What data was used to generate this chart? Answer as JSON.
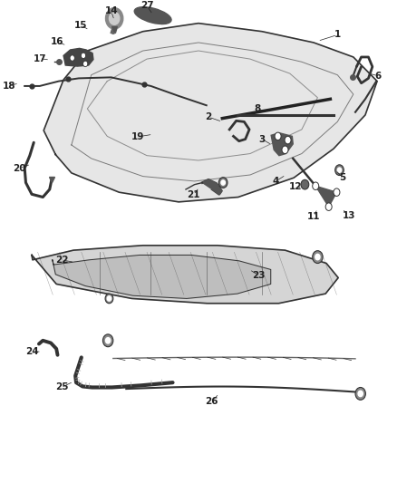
{
  "background": "#ffffff",
  "line_color": "#333333",
  "label_color": "#222222",
  "figsize": [
    4.38,
    5.33
  ],
  "dpi": 100,
  "label_positions": {
    "1": {
      "pt": [
        0.8,
        0.915
      ],
      "lbl": [
        0.85,
        0.928
      ]
    },
    "2": {
      "pt": [
        0.56,
        0.748
      ],
      "lbl": [
        0.525,
        0.758
      ]
    },
    "3": {
      "pt": [
        0.685,
        0.7
      ],
      "lbl": [
        0.66,
        0.712
      ]
    },
    "4": {
      "pt": [
        0.72,
        0.638
      ],
      "lbl": [
        0.695,
        0.625
      ]
    },
    "5": {
      "pt": [
        0.845,
        0.648
      ],
      "lbl": [
        0.862,
        0.633
      ]
    },
    "6": {
      "pt": [
        0.93,
        0.848
      ],
      "lbl": [
        0.952,
        0.843
      ]
    },
    "8": {
      "pt": [
        0.672,
        0.768
      ],
      "lbl": [
        0.648,
        0.775
      ]
    },
    "11": {
      "pt": [
        0.8,
        0.568
      ],
      "lbl": [
        0.79,
        0.552
      ]
    },
    "12": {
      "pt": [
        0.762,
        0.612
      ],
      "lbl": [
        0.745,
        0.614
      ]
    },
    "13": {
      "pt": [
        0.862,
        0.568
      ],
      "lbl": [
        0.878,
        0.553
      ]
    },
    "14": {
      "pt": [
        0.288,
        0.958
      ],
      "lbl": [
        0.28,
        0.977
      ]
    },
    "15": {
      "pt": [
        0.225,
        0.938
      ],
      "lbl": [
        0.203,
        0.948
      ]
    },
    "16": {
      "pt": [
        0.168,
        0.906
      ],
      "lbl": [
        0.145,
        0.913
      ]
    },
    "17": {
      "pt": [
        0.126,
        0.876
      ],
      "lbl": [
        0.1,
        0.879
      ]
    },
    "18": {
      "pt": [
        0.048,
        0.828
      ],
      "lbl": [
        0.022,
        0.822
      ]
    },
    "19": {
      "pt": [
        0.385,
        0.722
      ],
      "lbl": [
        0.348,
        0.717
      ]
    },
    "20": {
      "pt": [
        0.078,
        0.66
      ],
      "lbl": [
        0.048,
        0.652
      ]
    },
    "21": {
      "pt": [
        0.502,
        0.612
      ],
      "lbl": [
        0.487,
        0.597
      ]
    },
    "22": {
      "pt": [
        0.188,
        0.457
      ],
      "lbl": [
        0.155,
        0.462
      ]
    },
    "23": {
      "pt": [
        0.628,
        0.442
      ],
      "lbl": [
        0.652,
        0.43
      ]
    },
    "24": {
      "pt": [
        0.105,
        0.272
      ],
      "lbl": [
        0.08,
        0.272
      ]
    },
    "25": {
      "pt": [
        0.185,
        0.21
      ],
      "lbl": [
        0.155,
        0.198
      ]
    },
    "26": {
      "pt": [
        0.552,
        0.185
      ],
      "lbl": [
        0.532,
        0.168
      ]
    },
    "27": {
      "pt": [
        0.385,
        0.97
      ],
      "lbl": [
        0.37,
        0.988
      ]
    }
  }
}
